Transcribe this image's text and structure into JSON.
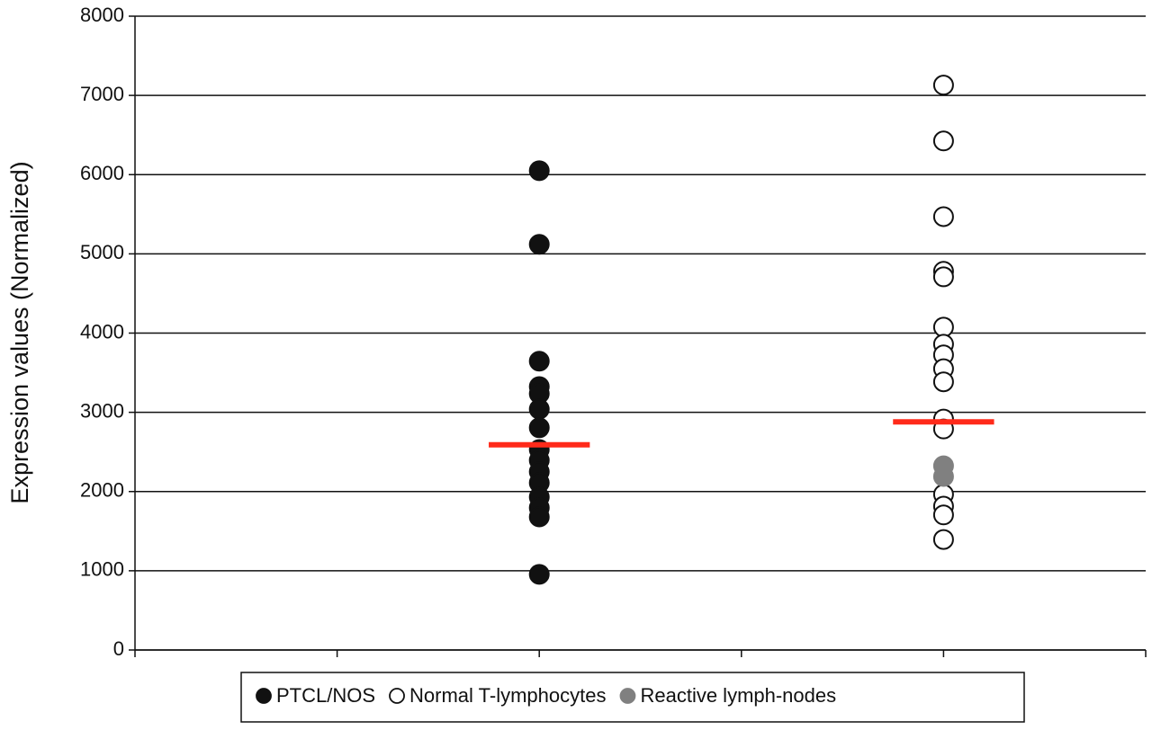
{
  "chart_data": {
    "type": "scatter",
    "y_label": "Expression values (Normalized)",
    "xlim": [
      0,
      5
    ],
    "xticks": [
      0,
      1,
      2,
      3,
      4,
      5
    ],
    "ylim": [
      0,
      8000
    ],
    "yticks": [
      0,
      1000,
      2000,
      3000,
      4000,
      5000,
      6000,
      7000,
      8000
    ],
    "grid": true,
    "legend": "bottom",
    "series": [
      {
        "name": "PTCL/NOS",
        "color": "#111111",
        "fill": "#111111",
        "x": [
          2,
          2,
          2,
          2,
          2,
          2,
          2,
          2,
          2,
          2,
          2,
          2,
          2,
          2,
          2
        ],
        "values": [
          6050,
          5120,
          3645,
          3325,
          3235,
          3040,
          2805,
          2530,
          2395,
          2250,
          2110,
          1930,
          1795,
          1680,
          955
        ]
      },
      {
        "name": "Normal T-lymphocytes",
        "color": "#111111",
        "fill": "#ffffff",
        "x": [
          4,
          4,
          4,
          4,
          4,
          4,
          4,
          4,
          4,
          4,
          4,
          4,
          4,
          4,
          4,
          4
        ],
        "values": [
          7130,
          6425,
          5470,
          4780,
          4710,
          4075,
          3860,
          3725,
          3550,
          3385,
          2915,
          2790,
          1965,
          1815,
          1705,
          1395
        ]
      },
      {
        "name": "Reactive lymph-nodes",
        "color": "#808080",
        "fill": "#808080",
        "x": [
          4,
          4
        ],
        "values": [
          2325,
          2190
        ]
      }
    ],
    "medians": {
      "color": "#ff2a1a",
      "x": [
        2,
        4
      ],
      "values": [
        2590,
        2880
      ]
    }
  }
}
